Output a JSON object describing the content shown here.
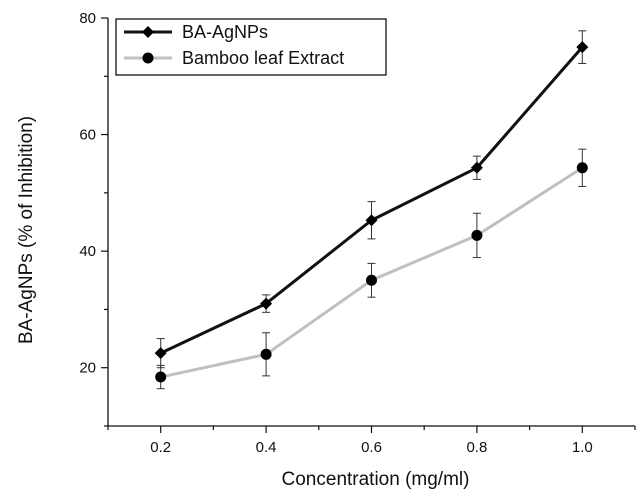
{
  "chart_data": {
    "type": "line",
    "title": "",
    "xlabel": "Concentration (mg/ml)",
    "ylabel": "BA-AgNPs (% of Inhibition)",
    "categories": [
      "0.2",
      "0.4",
      "0.6",
      "0.8",
      "1.0"
    ],
    "x": [
      0.2,
      0.4,
      0.6,
      0.8,
      1.0
    ],
    "xlim": [
      0.1,
      1.1
    ],
    "ylim": [
      10,
      80
    ],
    "yticks": [
      20,
      40,
      60,
      80
    ],
    "grid": false,
    "legend_position": "top-left",
    "series": [
      {
        "name": "BA-AgNPs",
        "values": [
          22.5,
          31,
          45.3,
          54.3,
          75
        ],
        "errors": [
          2.5,
          1.5,
          3.2,
          2,
          2.8
        ],
        "marker": "diamond",
        "color": "#111111"
      },
      {
        "name": "Bamboo leaf Extract",
        "values": [
          18.4,
          22.3,
          35,
          42.7,
          54.3
        ],
        "errors": [
          2,
          3.7,
          2.9,
          3.8,
          3.2
        ],
        "marker": "circle",
        "color": "#c0c0c0"
      }
    ]
  }
}
